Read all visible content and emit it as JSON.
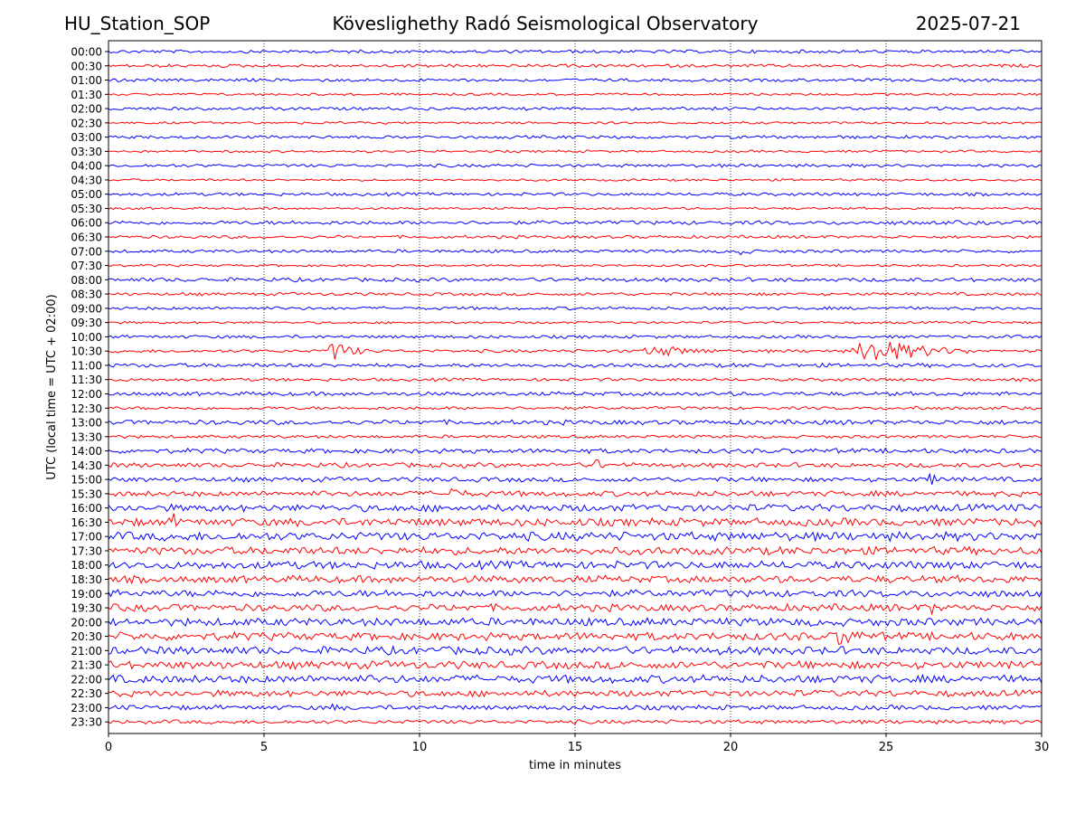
{
  "header": {
    "station": "HU_Station_SOP",
    "title": "Köveslighethy Radó Seismological Observatory",
    "date": "2025-07-21"
  },
  "chart_data": {
    "type": "line",
    "title": "Köveslighethy Radó Seismological Observatory",
    "xlabel": "time in minutes",
    "ylabel": "UTC (local time = UTC + 02:00)",
    "xlim": [
      0,
      30
    ],
    "xticks": [
      "0",
      "5",
      "10",
      "15",
      "20",
      "25",
      "30"
    ],
    "grid": "vertical dotted at x ticks",
    "colors": {
      "even": "#0000ff",
      "odd": "#ff0000"
    },
    "rows": [
      "00:00",
      "00:30",
      "01:00",
      "01:30",
      "02:00",
      "02:30",
      "03:00",
      "03:30",
      "04:00",
      "04:30",
      "05:00",
      "05:30",
      "06:00",
      "06:30",
      "07:00",
      "07:30",
      "08:00",
      "08:30",
      "09:00",
      "09:30",
      "10:00",
      "10:30",
      "11:00",
      "11:30",
      "12:00",
      "12:30",
      "13:00",
      "13:30",
      "14:00",
      "14:30",
      "15:00",
      "15:30",
      "16:00",
      "16:30",
      "17:00",
      "17:30",
      "18:00",
      "18:30",
      "19:00",
      "19:30",
      "20:00",
      "20:30",
      "21:00",
      "21:30",
      "22:00",
      "22:30",
      "23:00",
      "23:30"
    ],
    "noise_level": [
      2,
      2,
      2,
      1.5,
      2,
      1.5,
      2,
      1.5,
      2,
      1.5,
      2,
      1.5,
      2.5,
      2,
      2,
      1.5,
      2.5,
      2,
      2,
      1.5,
      2,
      2,
      2.5,
      2,
      2.5,
      2,
      3,
      2,
      3,
      3,
      3,
      3.5,
      4.5,
      5,
      5.5,
      5,
      5,
      4.5,
      4.5,
      4.5,
      5,
      5,
      5,
      5,
      5,
      4,
      3,
      2.5
    ],
    "events": [
      {
        "row": "07:00",
        "x": 20.0,
        "duration": 1.2,
        "amplitude": 6
      },
      {
        "row": "10:30",
        "x": 7.0,
        "duration": 1.5,
        "amplitude": 12
      },
      {
        "row": "10:30",
        "x": 17.0,
        "duration": 3.5,
        "amplitude": 7
      },
      {
        "row": "10:30",
        "x": 23.8,
        "duration": 4.0,
        "amplitude": 16
      },
      {
        "row": "12:30",
        "x": 25.8,
        "duration": 0.6,
        "amplitude": 6
      },
      {
        "row": "14:30",
        "x": 15.4,
        "duration": 1.0,
        "amplitude": 9
      },
      {
        "row": "15:00",
        "x": 26.2,
        "duration": 1.0,
        "amplitude": 8
      },
      {
        "row": "15:30",
        "x": 10.8,
        "duration": 1.5,
        "amplitude": 7
      },
      {
        "row": "16:30",
        "x": 2.0,
        "duration": 0.5,
        "amplitude": 11
      },
      {
        "row": "19:30",
        "x": 26.4,
        "duration": 0.4,
        "amplitude": 9
      },
      {
        "row": "20:30",
        "x": 23.3,
        "duration": 1.5,
        "amplitude": 14
      },
      {
        "row": "23:00",
        "x": 7.1,
        "duration": 0.6,
        "amplitude": 6
      }
    ]
  }
}
